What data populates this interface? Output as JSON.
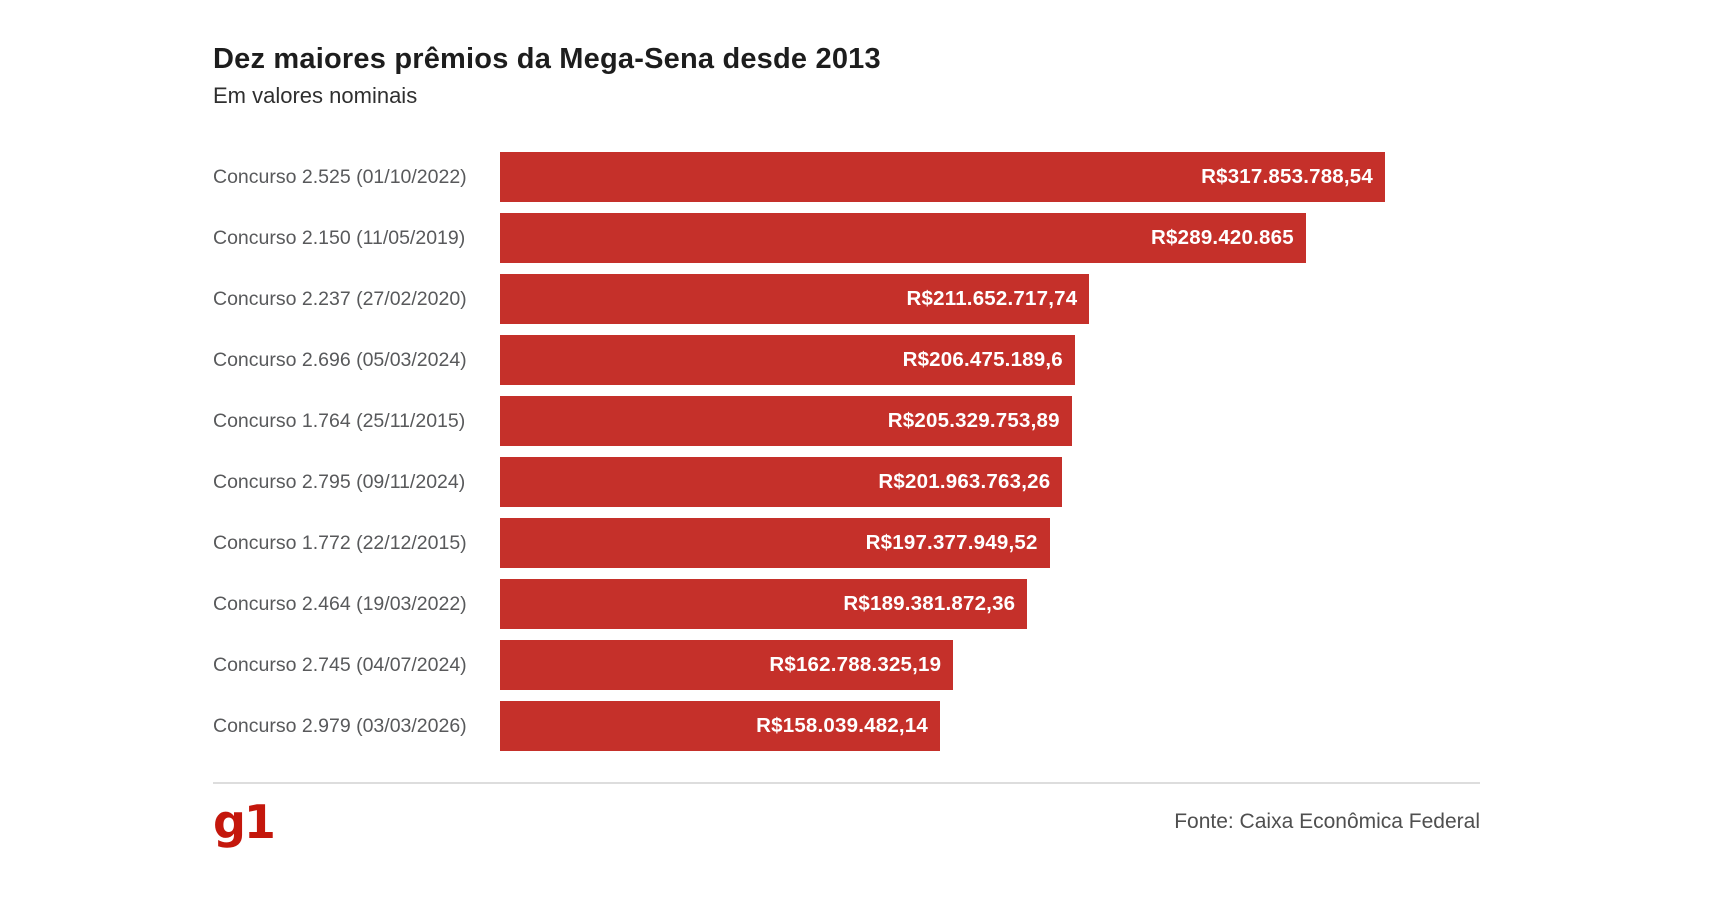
{
  "header": {
    "title": "Dez maiores prêmios da Mega-Sena desde 2013",
    "subtitle": "Em valores nominais"
  },
  "footer": {
    "logo_text": "g1",
    "source": "Fonte: Caixa Econômica Federal"
  },
  "colors": {
    "bar": "#c5302a",
    "value_text": "#ffffff",
    "label": "#58595b",
    "title": "#1d1d1d",
    "subtitle": "#2f2f2f",
    "divider": "#dddddd",
    "logo": "#c4170c",
    "source": "#4f4f4f",
    "background": "#ffffff"
  },
  "chart_data": {
    "type": "bar",
    "orientation": "horizontal",
    "title": "Dez maiores prêmios da Mega-Sena desde 2013",
    "subtitle": "Em valores nominais",
    "xlabel": "",
    "ylabel": "",
    "grid": false,
    "legend": "none",
    "xlim": [
      0,
      317853788.54
    ],
    "categories": [
      "Concurso 2.525 (01/10/2022)",
      "Concurso 2.150 (11/05/2019)",
      "Concurso 2.237 (27/02/2020)",
      "Concurso 2.696 (05/03/2024)",
      "Concurso 1.764 (25/11/2015)",
      "Concurso 2.795 (09/11/2024)",
      "Concurso 1.772 (22/12/2015)",
      "Concurso 2.464 (19/03/2022)",
      "Concurso 2.745 (04/07/2024)",
      "Concurso 2.979 (03/03/2026)"
    ],
    "values": [
      317853788.54,
      289420865,
      211652717.74,
      206475189.6,
      205329753.89,
      201963763.26,
      197377949.52,
      189381872.36,
      162788325.19,
      158039482.14
    ],
    "value_labels": [
      "R$317.853.788,54",
      "R$289.420.865",
      "R$211.652.717,74",
      "R$206.475.189,6",
      "R$205.329.753,89",
      "R$201.963.763,26",
      "R$197.377.949,52",
      "R$189.381.872,36",
      "R$162.788.325,19",
      "R$158.039.482,14"
    ]
  }
}
